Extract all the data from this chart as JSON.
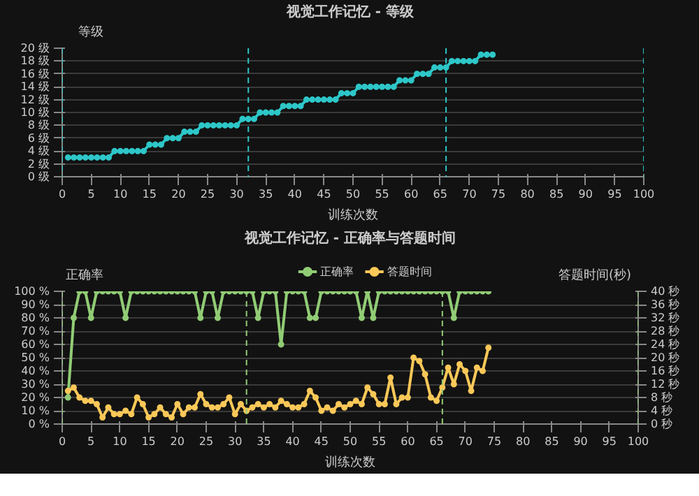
{
  "chart_data": [
    {
      "type": "line",
      "title": "视觉工作记忆 - 等级",
      "xlabel": "训练次数",
      "ylabel": "等级",
      "marker": "circle",
      "line_style": "solid",
      "grid": "y",
      "legend": false,
      "x": [
        1,
        2,
        3,
        4,
        5,
        6,
        7,
        8,
        9,
        10,
        11,
        12,
        13,
        14,
        15,
        16,
        17,
        18,
        19,
        20,
        21,
        22,
        23,
        24,
        25,
        26,
        27,
        28,
        29,
        30,
        31,
        32,
        33,
        34,
        35,
        36,
        37,
        38,
        39,
        40,
        41,
        42,
        43,
        44,
        45,
        46,
        47,
        48,
        49,
        50,
        51,
        52,
        53,
        54,
        55,
        56,
        57,
        58,
        59,
        60,
        61,
        62,
        63,
        64,
        65,
        66,
        67,
        68,
        69,
        70,
        71,
        72,
        73,
        74
      ],
      "series": [
        {
          "color": "#2ec7c9",
          "values": [
            3,
            3,
            3,
            3,
            3,
            3,
            3,
            3,
            4,
            4,
            4,
            4,
            4,
            4,
            5,
            5,
            5,
            6,
            6,
            6,
            7,
            7,
            7,
            8,
            8,
            8,
            8,
            8,
            8,
            8,
            9,
            9,
            9,
            10,
            10,
            10,
            10,
            11,
            11,
            11,
            11,
            12,
            12,
            12,
            12,
            12,
            12,
            13,
            13,
            13,
            14,
            14,
            14,
            14,
            14,
            14,
            14,
            15,
            15,
            15,
            16,
            16,
            16,
            17,
            17,
            17,
            18,
            18,
            18,
            18,
            18,
            19,
            19,
            19
          ]
        }
      ],
      "xlim": [
        0,
        100
      ],
      "xticks": [
        0,
        5,
        10,
        15,
        20,
        25,
        30,
        35,
        40,
        45,
        50,
        55,
        60,
        65,
        70,
        75,
        80,
        85,
        90,
        95,
        100
      ],
      "ylim": [
        0,
        20
      ],
      "yticks": [
        {
          "value": 0,
          "label": "0 级"
        },
        {
          "value": 2,
          "label": "2 级"
        },
        {
          "value": 4,
          "label": "4 级"
        },
        {
          "value": 6,
          "label": "6 级"
        },
        {
          "value": 8,
          "label": "8 级"
        },
        {
          "value": 10,
          "label": "10 级"
        },
        {
          "value": 12,
          "label": "12 级"
        },
        {
          "value": 14,
          "label": "14 级"
        },
        {
          "value": 16,
          "label": "16 级"
        },
        {
          "value": 18,
          "label": "18 级"
        },
        {
          "value": 20,
          "label": "20 级"
        }
      ],
      "ref_lines": [
        {
          "axis": "x",
          "value": 0,
          "color": "#2ec7c9",
          "line_style": "dashed"
        },
        {
          "axis": "x",
          "value": 32,
          "color": "#2ec7c9",
          "line_style": "dashed"
        },
        {
          "axis": "x",
          "value": 66,
          "color": "#2ec7c9",
          "line_style": "dashed"
        },
        {
          "axis": "x",
          "value": 100,
          "color": "#2ec7c9",
          "line_style": "dashed"
        }
      ]
    },
    {
      "type": "line",
      "title": "视觉工作记忆 - 正确率与答题时间",
      "xlabel": "训练次数",
      "ylabel": "正确率",
      "y2label": "答题时间(秒)",
      "marker": "circle",
      "line_style": "solid",
      "grid": "y",
      "legend": "top",
      "x": [
        1,
        2,
        3,
        4,
        5,
        6,
        7,
        8,
        9,
        10,
        11,
        12,
        13,
        14,
        15,
        16,
        17,
        18,
        19,
        20,
        21,
        22,
        23,
        24,
        25,
        26,
        27,
        28,
        29,
        30,
        31,
        32,
        33,
        34,
        35,
        36,
        37,
        38,
        39,
        40,
        41,
        42,
        43,
        44,
        45,
        46,
        47,
        48,
        49,
        50,
        51,
        52,
        53,
        54,
        55,
        56,
        57,
        58,
        59,
        60,
        61,
        62,
        63,
        64,
        65,
        66,
        67,
        68,
        69,
        70,
        71,
        72,
        73,
        74
      ],
      "series": [
        {
          "name": "正确率",
          "color": "#91cc75",
          "values": [
            20,
            80,
            100,
            100,
            80,
            100,
            100,
            100,
            100,
            100,
            80,
            100,
            100,
            100,
            100,
            100,
            100,
            100,
            100,
            100,
            100,
            100,
            100,
            80,
            100,
            100,
            80,
            100,
            100,
            100,
            100,
            100,
            100,
            80,
            100,
            100,
            100,
            60,
            100,
            100,
            100,
            100,
            80,
            80,
            100,
            100,
            100,
            100,
            100,
            100,
            100,
            80,
            100,
            80,
            100,
            100,
            100,
            100,
            100,
            100,
            100,
            100,
            100,
            100,
            100,
            100,
            100,
            80,
            100,
            100,
            100,
            100,
            100,
            100
          ]
        },
        {
          "name": "答题时间",
          "color": "#fac858",
          "axis": "y2",
          "values": [
            10,
            11,
            8,
            7,
            7,
            6,
            2,
            5,
            3,
            3,
            4,
            3,
            8,
            6,
            2,
            3,
            5,
            3,
            2,
            6,
            3,
            5,
            5,
            9,
            6,
            5,
            5,
            6,
            8,
            3,
            6,
            4,
            5,
            6,
            5,
            6,
            5,
            7,
            6,
            5,
            5,
            6,
            10,
            8,
            4,
            5,
            4,
            6,
            5,
            6,
            7,
            6,
            11,
            9,
            6,
            6,
            14,
            6,
            8,
            8,
            20,
            19,
            15,
            8,
            7,
            11,
            17,
            12,
            18,
            16,
            10,
            17,
            16,
            23
          ]
        }
      ],
      "xlim": [
        0,
        100
      ],
      "xticks": [
        0,
        5,
        10,
        15,
        20,
        25,
        30,
        35,
        40,
        45,
        50,
        55,
        60,
        65,
        70,
        75,
        80,
        85,
        90,
        95,
        100
      ],
      "ylim": [
        0,
        100
      ],
      "yticks": [
        {
          "value": 0,
          "label": "0 %"
        },
        {
          "value": 10,
          "label": "10 %"
        },
        {
          "value": 20,
          "label": "20 %"
        },
        {
          "value": 30,
          "label": "30 %"
        },
        {
          "value": 40,
          "label": "40 %"
        },
        {
          "value": 50,
          "label": "50 %"
        },
        {
          "value": 60,
          "label": "60 %"
        },
        {
          "value": 70,
          "label": "70 %"
        },
        {
          "value": 80,
          "label": "80 %"
        },
        {
          "value": 90,
          "label": "90 %"
        },
        {
          "value": 100,
          "label": "100 %"
        }
      ],
      "y2lim": [
        0,
        40
      ],
      "y2ticks": [
        {
          "value": 0,
          "label": "0 秒"
        },
        {
          "value": 4,
          "label": "4 秒"
        },
        {
          "value": 8,
          "label": "8 秒"
        },
        {
          "value": 12,
          "label": "12 秒"
        },
        {
          "value": 16,
          "label": "16 秒"
        },
        {
          "value": 20,
          "label": "20 秒"
        },
        {
          "value": 24,
          "label": "24 秒"
        },
        {
          "value": 28,
          "label": "28 秒"
        },
        {
          "value": 32,
          "label": "32 秒"
        },
        {
          "value": 36,
          "label": "36 秒"
        },
        {
          "value": 40,
          "label": "40 秒"
        }
      ],
      "ref_lines": [
        {
          "axis": "x",
          "value": 0,
          "color": "#91cc75",
          "line_style": "dashed"
        },
        {
          "axis": "x",
          "value": 32,
          "color": "#91cc75",
          "line_style": "dashed"
        },
        {
          "axis": "x",
          "value": 66,
          "color": "#91cc75",
          "line_style": "dashed"
        },
        {
          "axis": "x",
          "value": 100,
          "color": "#91cc75",
          "line_style": "dashed"
        }
      ]
    }
  ]
}
